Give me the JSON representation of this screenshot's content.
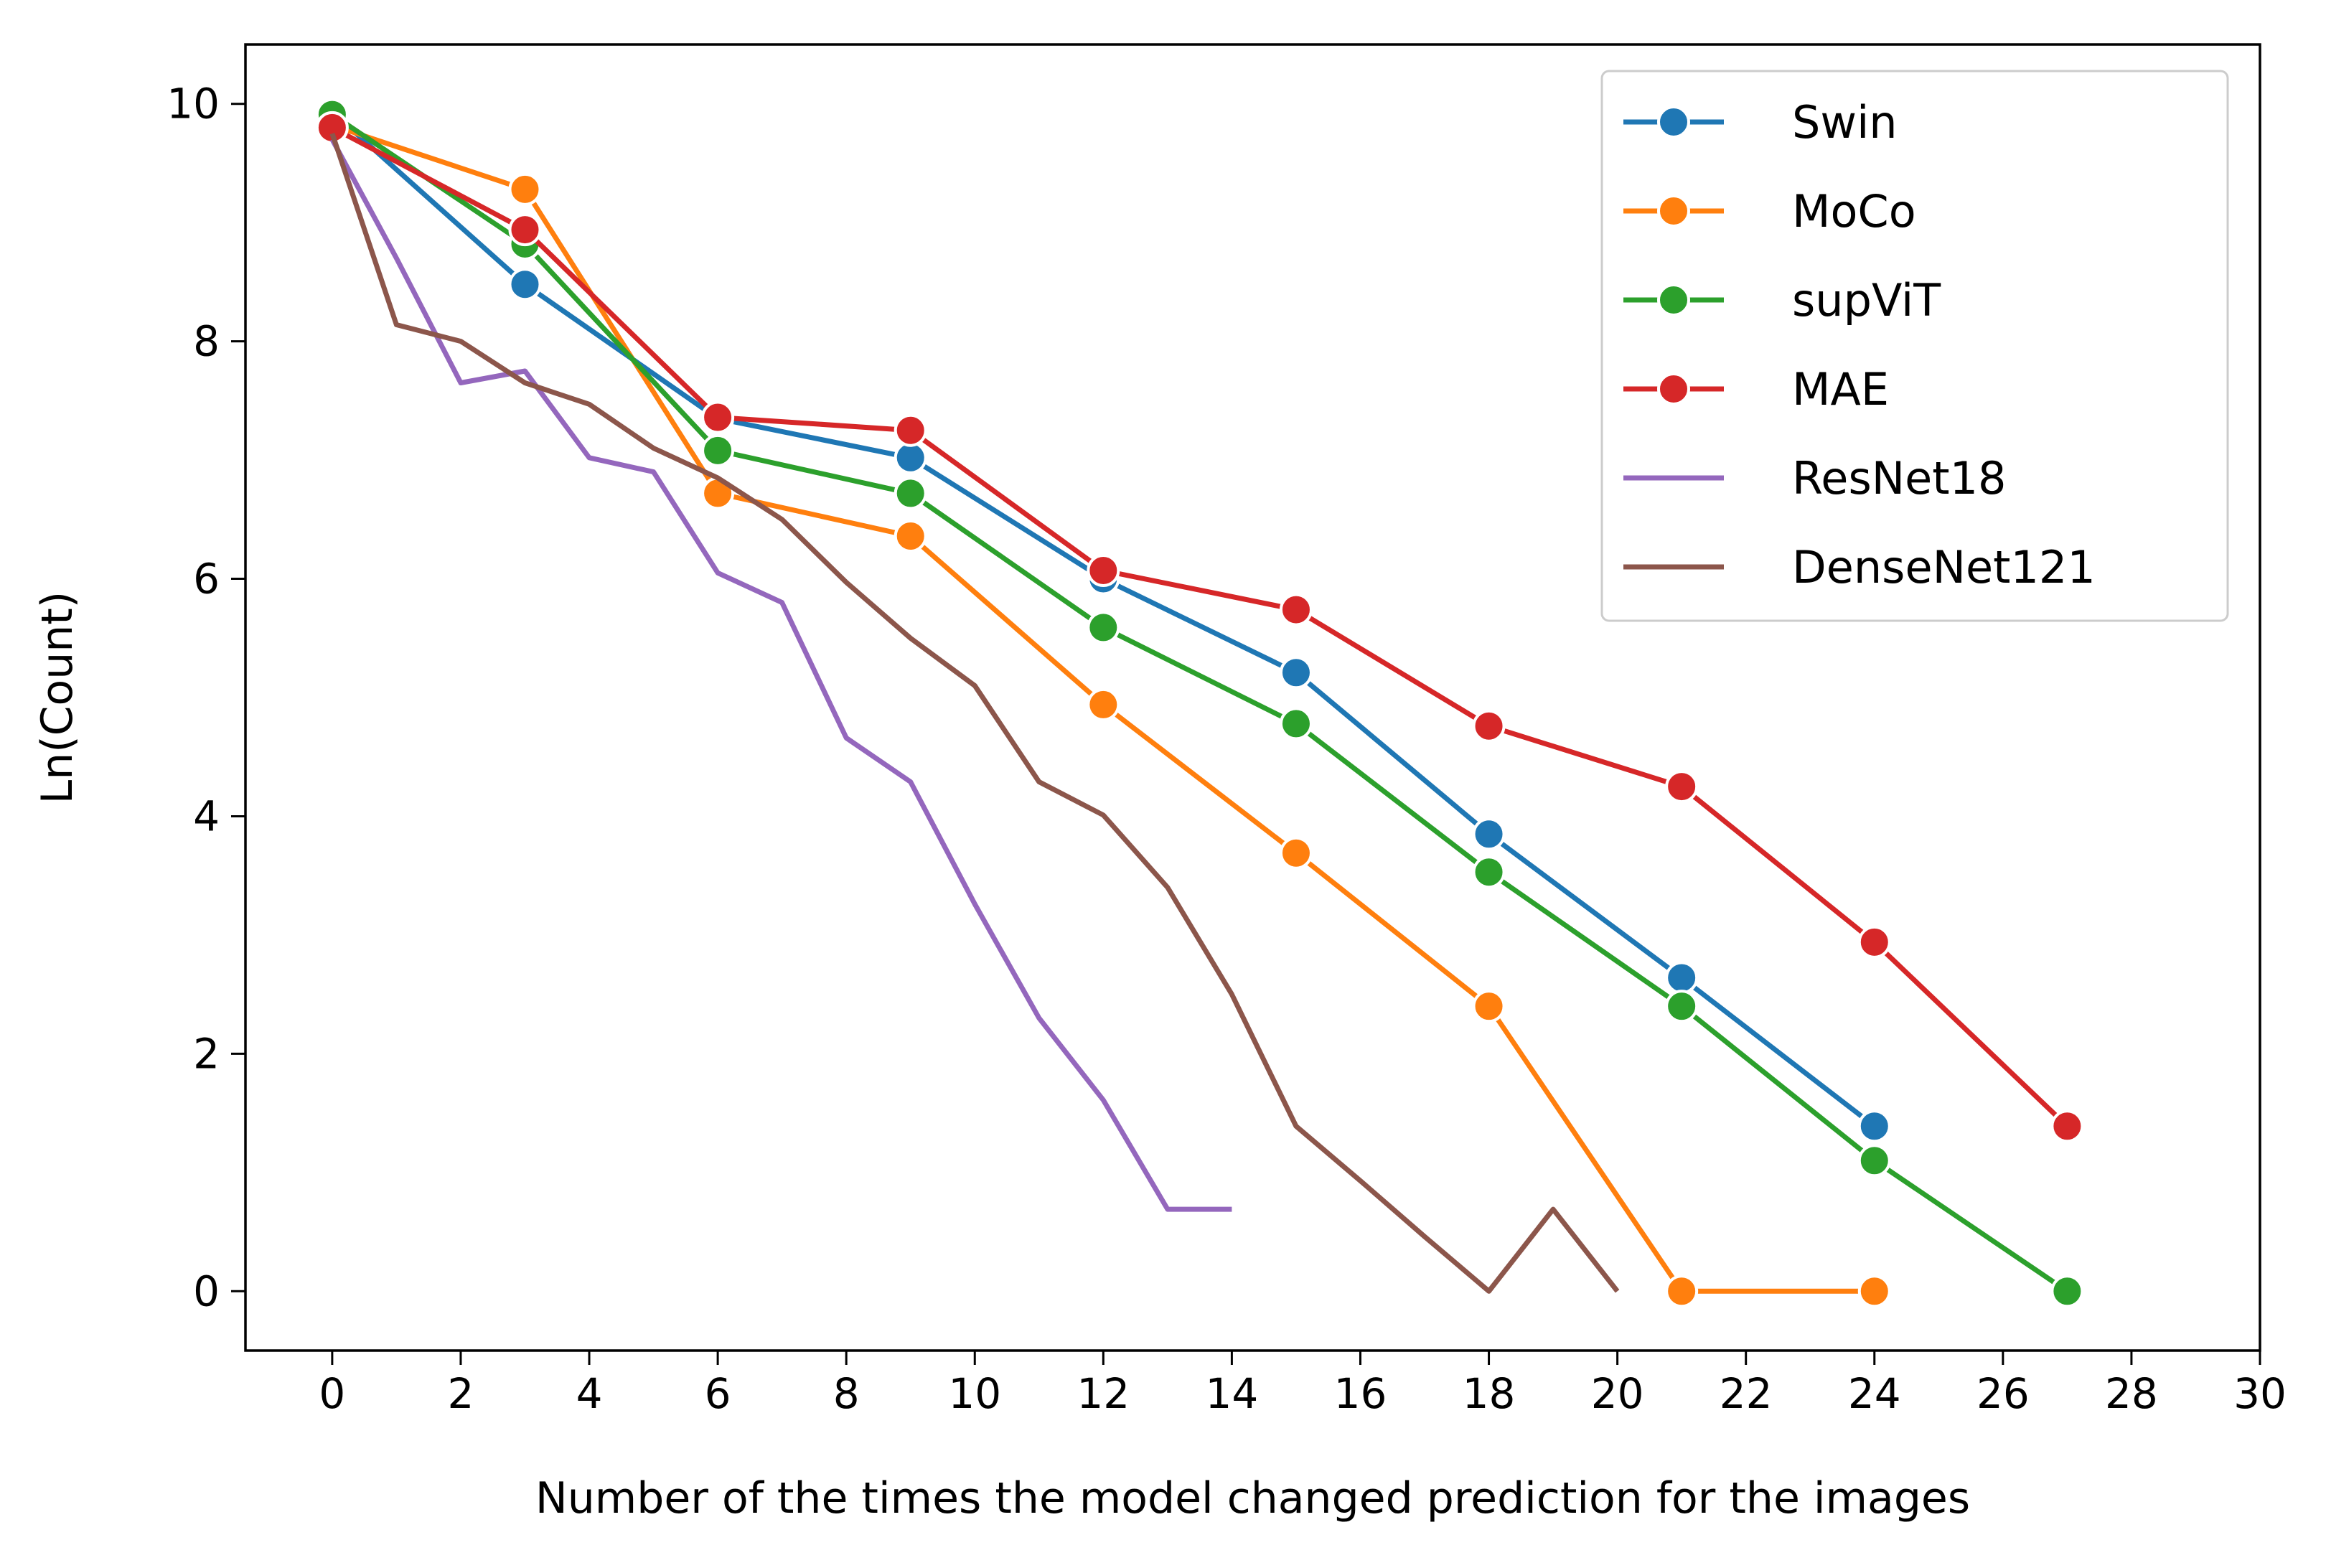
{
  "chart_data": {
    "type": "line",
    "title": "",
    "xlabel": "Number of the times the model changed prediction for the images",
    "ylabel": "Ln(Count)",
    "xlim": [
      -1.35,
      30
    ],
    "ylim": [
      -0.5,
      10.5
    ],
    "xticks": [
      0,
      2,
      4,
      6,
      8,
      10,
      12,
      14,
      16,
      18,
      20,
      22,
      24,
      26,
      28,
      30
    ],
    "yticks": [
      0,
      2,
      4,
      6,
      8,
      10
    ],
    "legend_position": "top-right",
    "series": [
      {
        "name": "Swin",
        "color": "#1f77b4",
        "marker": "circle",
        "x": [
          0,
          3,
          6,
          9,
          12,
          15,
          18,
          21,
          24
        ],
        "y": [
          9.93,
          8.48,
          7.35,
          7.02,
          6.0,
          5.21,
          3.85,
          2.64,
          1.39
        ]
      },
      {
        "name": "MoCo",
        "color": "#ff7f0e",
        "marker": "circle",
        "x": [
          0,
          3,
          6,
          9,
          12,
          15,
          18,
          21,
          24
        ],
        "y": [
          9.82,
          9.28,
          6.72,
          6.36,
          4.94,
          3.69,
          2.4,
          0.0,
          0.0
        ]
      },
      {
        "name": "supViT",
        "color": "#2ca02c",
        "marker": "circle",
        "x": [
          0,
          3,
          6,
          9,
          12,
          15,
          18,
          21,
          24,
          27
        ],
        "y": [
          9.91,
          8.82,
          7.08,
          6.72,
          5.59,
          4.78,
          3.53,
          2.4,
          1.1,
          0.0
        ]
      },
      {
        "name": "MAE",
        "color": "#d62728",
        "marker": "circle",
        "x": [
          0,
          3,
          6,
          9,
          12,
          15,
          18,
          21,
          24,
          27
        ],
        "y": [
          9.8,
          8.94,
          7.36,
          7.25,
          6.07,
          5.74,
          4.76,
          4.25,
          2.94,
          1.39
        ]
      },
      {
        "name": "ResNet18",
        "color": "#9467bd",
        "marker": "none",
        "x": [
          0,
          1,
          2,
          3,
          4,
          5,
          6,
          7,
          8,
          9,
          10,
          11,
          12,
          13,
          14
        ],
        "y": [
          9.7,
          8.7,
          7.65,
          7.75,
          7.02,
          6.9,
          6.05,
          5.8,
          4.66,
          4.29,
          3.26,
          2.3,
          1.61,
          0.69,
          0.69
        ]
      },
      {
        "name": "DenseNet121",
        "color": "#8c564b",
        "marker": "none",
        "x": [
          0,
          1,
          2,
          3,
          4,
          5,
          6,
          7,
          8,
          9,
          10,
          11,
          12,
          13,
          14,
          15,
          16,
          17,
          18,
          19,
          20
        ],
        "y": [
          9.75,
          8.14,
          8.0,
          7.65,
          7.47,
          7.1,
          6.85,
          6.5,
          5.97,
          5.5,
          5.1,
          4.29,
          4.01,
          3.4,
          2.5,
          1.39,
          0.93,
          0.46,
          0.0,
          0.69,
          0.0
        ]
      }
    ]
  }
}
